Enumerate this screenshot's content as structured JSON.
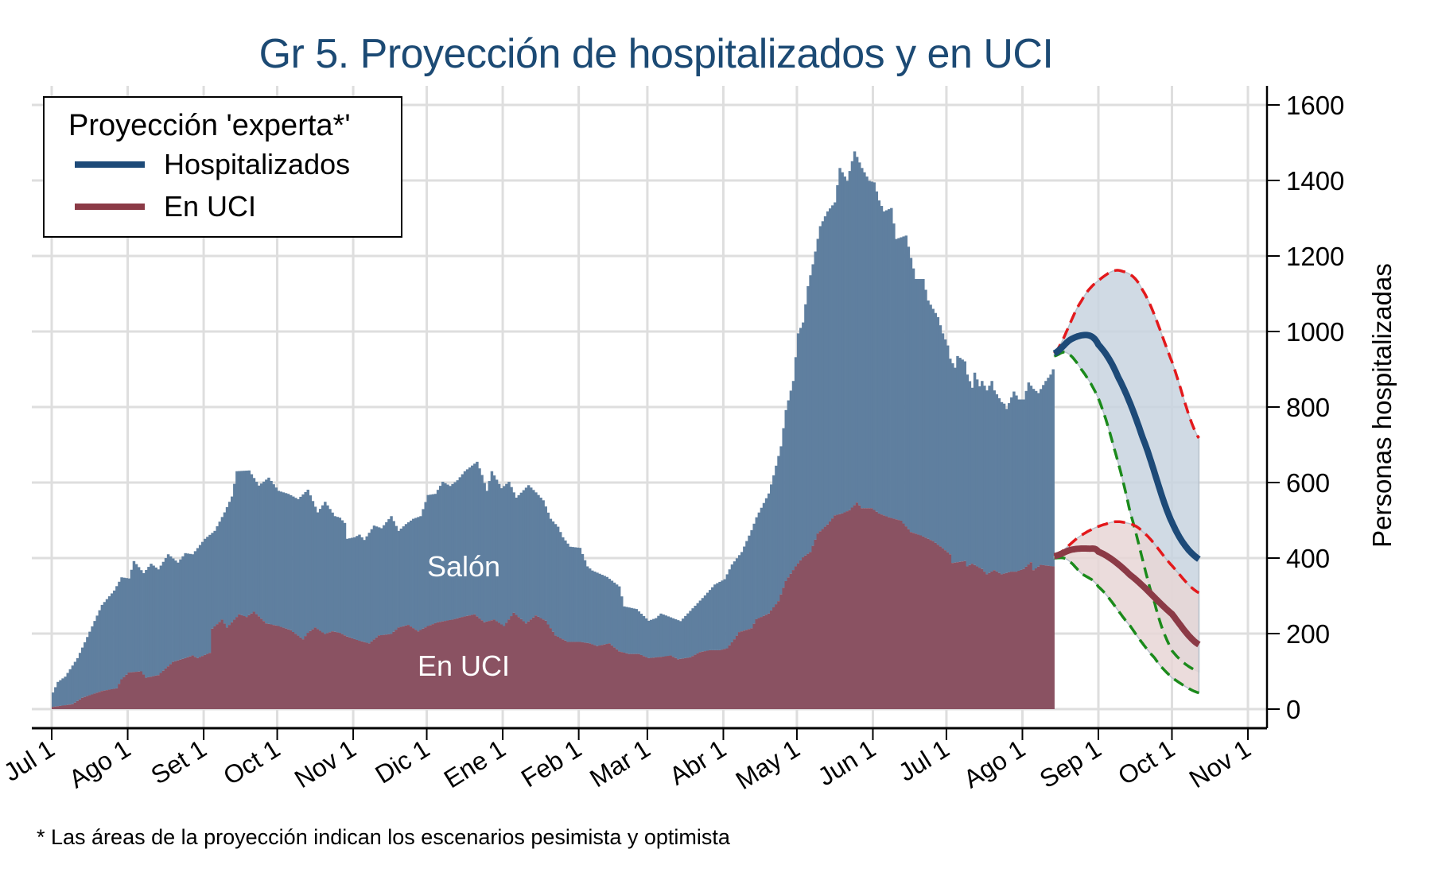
{
  "chart_data": {
    "type": "bar",
    "title": "Gr 5. Proyección de hospitalizados y en UCI",
    "ylabel": "Personas hospitalizadas",
    "xlabel": "",
    "ylim": [
      0,
      1600
    ],
    "yticks": [
      0,
      200,
      400,
      600,
      800,
      1000,
      1200,
      1400,
      1600
    ],
    "x_unit": "days since Jul 1",
    "xlim": [
      0,
      488
    ],
    "xticks": [
      {
        "day": 0,
        "label": "Jul 1"
      },
      {
        "day": 31,
        "label": "Ago 1"
      },
      {
        "day": 62,
        "label": "Set 1"
      },
      {
        "day": 92,
        "label": "Oct 1"
      },
      {
        "day": 123,
        "label": "Nov 1"
      },
      {
        "day": 153,
        "label": "Dic 1"
      },
      {
        "day": 184,
        "label": "Ene 1"
      },
      {
        "day": 215,
        "label": "Feb 1"
      },
      {
        "day": 243,
        "label": "Mar 1"
      },
      {
        "day": 274,
        "label": "Abr 1"
      },
      {
        "day": 304,
        "label": "May 1"
      },
      {
        "day": 335,
        "label": "Jun 1"
      },
      {
        "day": 365,
        "label": "Jul 1"
      },
      {
        "day": 396,
        "label": "Ago 1"
      },
      {
        "day": 427,
        "label": "Sep 1"
      },
      {
        "day": 457,
        "label": "Oct 1"
      },
      {
        "day": 488,
        "label": "Nov 1"
      }
    ],
    "grid": true,
    "legend": {
      "title": "Proyección 'experta*'",
      "position": "top-left",
      "entries": [
        {
          "label": "Hospitalizados",
          "color": "#1d4a78"
        },
        {
          "label": "En UCI",
          "color": "#8b3a46"
        }
      ]
    },
    "annotations": {
      "salon": "Salón",
      "uci": "En UCI"
    },
    "footnote": "* Las áreas de la proyección indican los escenarios pesimista y optimista",
    "colors": {
      "hosp_bar": "#5f7f9f",
      "uci_bar": "#8a5262",
      "hosp_line": "#1d4a78",
      "uci_line": "#8b3a46",
      "hosp_band": "#c8d4df",
      "uci_band": "#e8d6d6",
      "pessimistic": "#e3191c",
      "optimistic": "#1b8a1b",
      "grid": "#dedede"
    },
    "series": [
      {
        "name": "Hospitalizados (total)",
        "keypoints": [
          [
            0,
            44
          ],
          [
            2,
            72
          ],
          [
            5,
            86
          ],
          [
            10,
            135
          ],
          [
            15,
            205
          ],
          [
            20,
            276
          ],
          [
            25,
            314
          ],
          [
            28,
            349
          ],
          [
            31,
            346
          ],
          [
            33,
            392
          ],
          [
            37,
            360
          ],
          [
            40,
            385
          ],
          [
            43,
            370
          ],
          [
            47,
            410
          ],
          [
            51,
            388
          ],
          [
            54,
            413
          ],
          [
            57,
            410
          ],
          [
            62,
            451
          ],
          [
            66,
            472
          ],
          [
            70,
            521
          ],
          [
            73,
            563
          ],
          [
            75,
            630
          ],
          [
            80,
            632
          ],
          [
            84,
            592
          ],
          [
            88,
            613
          ],
          [
            92,
            578
          ],
          [
            96,
            570
          ],
          [
            100,
            556
          ],
          [
            104,
            581
          ],
          [
            108,
            521
          ],
          [
            111,
            549
          ],
          [
            115,
            511
          ],
          [
            117,
            507
          ],
          [
            119,
            493
          ],
          [
            120,
            451
          ],
          [
            123,
            455
          ],
          [
            125,
            462
          ],
          [
            127,
            448
          ],
          [
            131,
            486
          ],
          [
            134,
            479
          ],
          [
            138,
            511
          ],
          [
            141,
            472
          ],
          [
            144,
            490
          ],
          [
            147,
            504
          ],
          [
            150,
            511
          ],
          [
            153,
            567
          ],
          [
            156,
            570
          ],
          [
            159,
            602
          ],
          [
            162,
            591
          ],
          [
            165,
            606
          ],
          [
            168,
            630
          ],
          [
            173,
            655
          ],
          [
            175,
            620
          ],
          [
            177,
            578
          ],
          [
            179,
            630
          ],
          [
            183,
            585
          ],
          [
            186,
            602
          ],
          [
            189,
            560
          ],
          [
            194,
            593
          ],
          [
            197,
            574
          ],
          [
            200,
            553
          ],
          [
            203,
            504
          ],
          [
            206,
            483
          ],
          [
            208,
            455
          ],
          [
            211,
            430
          ],
          [
            215,
            427
          ],
          [
            218,
            378
          ],
          [
            220,
            367
          ],
          [
            226,
            350
          ],
          [
            231,
            325
          ],
          [
            233,
            272
          ],
          [
            238,
            265
          ],
          [
            243,
            234
          ],
          [
            246,
            241
          ],
          [
            248,
            253
          ],
          [
            252,
            243
          ],
          [
            256,
            233
          ],
          [
            261,
            267
          ],
          [
            266,
            301
          ],
          [
            270,
            330
          ],
          [
            274,
            344
          ],
          [
            277,
            383
          ],
          [
            281,
            416
          ],
          [
            285,
            474
          ],
          [
            287,
            508
          ],
          [
            292,
            571
          ],
          [
            294,
            619
          ],
          [
            297,
            696
          ],
          [
            299,
            792
          ],
          [
            302,
            869
          ],
          [
            304,
            995
          ],
          [
            306,
            1024
          ],
          [
            308,
            1120
          ],
          [
            310,
            1178
          ],
          [
            313,
            1279
          ],
          [
            316,
            1318
          ],
          [
            319,
            1342
          ],
          [
            321,
            1433
          ],
          [
            324,
            1399
          ],
          [
            327,
            1477
          ],
          [
            330,
            1433
          ],
          [
            333,
            1399
          ],
          [
            335,
            1395
          ],
          [
            337,
            1347
          ],
          [
            339,
            1318
          ],
          [
            342,
            1327
          ],
          [
            344,
            1245
          ],
          [
            348,
            1254
          ],
          [
            350,
            1195
          ],
          [
            352,
            1139
          ],
          [
            355,
            1139
          ],
          [
            357,
            1082
          ],
          [
            361,
            1038
          ],
          [
            363,
            995
          ],
          [
            365,
            963
          ],
          [
            366,
            928
          ],
          [
            368,
            904
          ],
          [
            369,
            935
          ],
          [
            372,
            921
          ],
          [
            373,
            886
          ],
          [
            375,
            851
          ],
          [
            376,
            891
          ],
          [
            378,
            855
          ],
          [
            379,
            869
          ],
          [
            381,
            844
          ],
          [
            383,
            869
          ],
          [
            384,
            844
          ],
          [
            387,
            813
          ],
          [
            388,
            809
          ],
          [
            389,
            795
          ],
          [
            392,
            841
          ],
          [
            394,
            820
          ],
          [
            396,
            820
          ],
          [
            398,
            865
          ],
          [
            400,
            848
          ],
          [
            402,
            837
          ],
          [
            405,
            869
          ],
          [
            407,
            886
          ],
          [
            408,
            900
          ]
        ]
      },
      {
        "name": "En UCI",
        "keypoints": [
          [
            0,
            6
          ],
          [
            8,
            13
          ],
          [
            12,
            30
          ],
          [
            20,
            48
          ],
          [
            26,
            55
          ],
          [
            28,
            79
          ],
          [
            31,
            97
          ],
          [
            36,
            100
          ],
          [
            38,
            83
          ],
          [
            43,
            90
          ],
          [
            49,
            125
          ],
          [
            54,
            135
          ],
          [
            57,
            142
          ],
          [
            59,
            135
          ],
          [
            64,
            149
          ],
          [
            65,
            213
          ],
          [
            69,
            237
          ],
          [
            71,
            216
          ],
          [
            76,
            251
          ],
          [
            79,
            244
          ],
          [
            82,
            258
          ],
          [
            87,
            227
          ],
          [
            92,
            220
          ],
          [
            97,
            209
          ],
          [
            102,
            185
          ],
          [
            104,
            202
          ],
          [
            107,
            216
          ],
          [
            111,
            199
          ],
          [
            114,
            206
          ],
          [
            117,
            202
          ],
          [
            120,
            192
          ],
          [
            125,
            181
          ],
          [
            129,
            174
          ],
          [
            133,
            195
          ],
          [
            138,
            199
          ],
          [
            141,
            216
          ],
          [
            145,
            223
          ],
          [
            149,
            206
          ],
          [
            153,
            220
          ],
          [
            157,
            230
          ],
          [
            163,
            237
          ],
          [
            167,
            244
          ],
          [
            172,
            251
          ],
          [
            176,
            230
          ],
          [
            180,
            237
          ],
          [
            184,
            220
          ],
          [
            188,
            255
          ],
          [
            193,
            227
          ],
          [
            197,
            248
          ],
          [
            201,
            234
          ],
          [
            205,
            195
          ],
          [
            210,
            178
          ],
          [
            215,
            178
          ],
          [
            219,
            174
          ],
          [
            222,
            167
          ],
          [
            227,
            174
          ],
          [
            231,
            153
          ],
          [
            235,
            146
          ],
          [
            239,
            146
          ],
          [
            243,
            135
          ],
          [
            249,
            139
          ],
          [
            252,
            142
          ],
          [
            255,
            132
          ],
          [
            260,
            137
          ],
          [
            264,
            151
          ],
          [
            268,
            156
          ],
          [
            272,
            156
          ],
          [
            275,
            161
          ],
          [
            278,
            185
          ],
          [
            280,
            204
          ],
          [
            285,
            214
          ],
          [
            287,
            238
          ],
          [
            292,
            253
          ],
          [
            296,
            286
          ],
          [
            299,
            339
          ],
          [
            303,
            378
          ],
          [
            306,
            402
          ],
          [
            309,
            416
          ],
          [
            312,
            465
          ],
          [
            316,
            489
          ],
          [
            319,
            513
          ],
          [
            322,
            518
          ],
          [
            325,
            527
          ],
          [
            328,
            547
          ],
          [
            330,
            532
          ],
          [
            334,
            532
          ],
          [
            337,
            518
          ],
          [
            341,
            508
          ],
          [
            346,
            499
          ],
          [
            350,
            469
          ],
          [
            354,
            460
          ],
          [
            359,
            445
          ],
          [
            363,
            426
          ],
          [
            366,
            410
          ],
          [
            367,
            387
          ],
          [
            369,
            389
          ],
          [
            372,
            392
          ],
          [
            373,
            378
          ],
          [
            375,
            385
          ],
          [
            379,
            371
          ],
          [
            381,
            357
          ],
          [
            384,
            368
          ],
          [
            387,
            357
          ],
          [
            391,
            364
          ],
          [
            393,
            364
          ],
          [
            396,
            371
          ],
          [
            399,
            389
          ],
          [
            400,
            368
          ],
          [
            403,
            382
          ],
          [
            408,
            378
          ]
        ]
      }
    ],
    "projections": [
      {
        "name": "Hospitalizados proyección",
        "central": [
          [
            409,
            942
          ],
          [
            416,
            980
          ],
          [
            423,
            990
          ],
          [
            427,
            965
          ],
          [
            435,
            880
          ],
          [
            445,
            720
          ],
          [
            457,
            495
          ],
          [
            468,
            397
          ]
        ],
        "pessimistic": [
          [
            409,
            942
          ],
          [
            420,
            1080
          ],
          [
            428,
            1140
          ],
          [
            436,
            1161
          ],
          [
            445,
            1110
          ],
          [
            457,
            920
          ],
          [
            468,
            718
          ]
        ],
        "optimistic": [
          [
            409,
            935
          ],
          [
            414,
            944
          ],
          [
            420,
            900
          ],
          [
            427,
            823
          ],
          [
            433,
            700
          ],
          [
            440,
            520
          ],
          [
            450,
            280
          ],
          [
            457,
            155
          ],
          [
            468,
            99
          ]
        ]
      },
      {
        "name": "En UCI proyección",
        "central": [
          [
            409,
            405
          ],
          [
            416,
            422
          ],
          [
            423,
            425
          ],
          [
            427,
            417
          ],
          [
            440,
            355
          ],
          [
            457,
            252
          ],
          [
            468,
            171
          ]
        ],
        "pessimistic": [
          [
            409,
            405
          ],
          [
            420,
            460
          ],
          [
            430,
            490
          ],
          [
            437,
            495
          ],
          [
            445,
            470
          ],
          [
            457,
            380
          ],
          [
            468,
            308
          ]
        ],
        "optimistic": [
          [
            409,
            400
          ],
          [
            414,
            397
          ],
          [
            420,
            360
          ],
          [
            427,
            324
          ],
          [
            440,
            220
          ],
          [
            450,
            135
          ],
          [
            457,
            83
          ],
          [
            468,
            43
          ]
        ]
      }
    ]
  }
}
